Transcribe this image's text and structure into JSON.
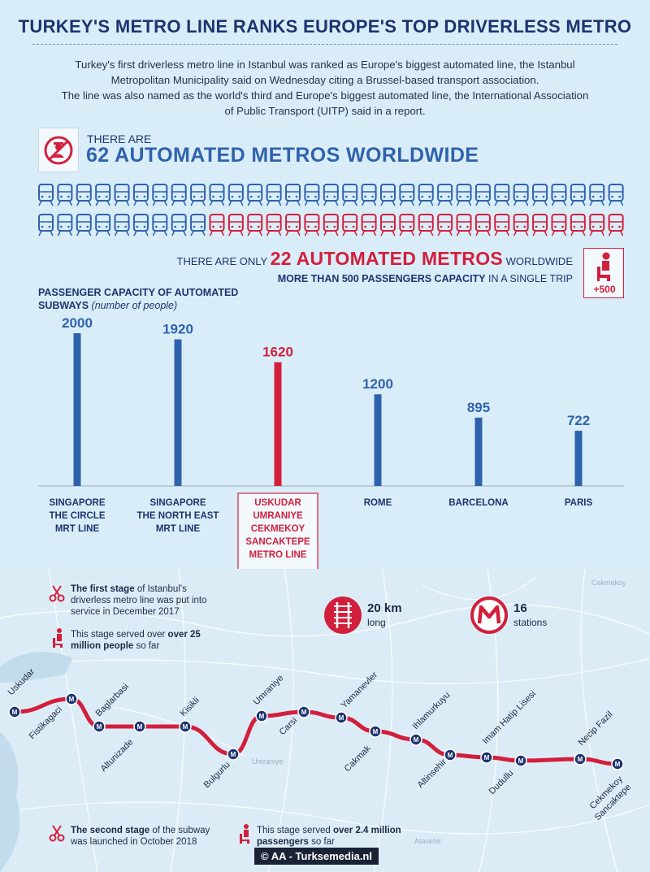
{
  "header": {
    "title": "TURKEY'S METRO LINE RANKS EUROPE'S TOP DRIVERLESS METRO",
    "intro": [
      "Turkey's first driverless metro line in Istanbul was ranked as Europe's biggest automated line, the Istanbul",
      "Metropolitan Municipality said on Wednesday citing a Brussel-based transport association.",
      "The line was also named as the world's third and Europe's biggest automated line, the International Association",
      "of Public Transport (UITP) said in a report."
    ]
  },
  "worldwide": {
    "there_are": "THERE ARE",
    "headline": "62 AUTOMATED METROS WORLDWIDE",
    "total_icons": 62,
    "highlighted_icons": 22,
    "only_prefix": "THERE ARE ONLY",
    "only_highlight": "22 AUTOMATED METROS",
    "only_suffix": "WORLDWIDE",
    "capacity_bold": "MORE THAN 500 PASSENGERS CAPACITY",
    "capacity_rest": "IN A SINGLE TRIP",
    "badge": "+500"
  },
  "chart_data": {
    "type": "bar",
    "title": "PASSENGER CAPACITY OF AUTOMATED SUBWAYS",
    "subtitle": "(number of people)",
    "categories": [
      [
        "SINGAPORE",
        "THE CIRCLE",
        "MRT LINE"
      ],
      [
        "SINGAPORE",
        "THE NORTH EAST",
        "MRT LINE"
      ],
      [
        "USKUDAR",
        "UMRANIYE",
        "CEKMEKOY",
        "SANCAKTEPE",
        "METRO LINE"
      ],
      [
        "ROME"
      ],
      [
        "BARCELONA"
      ],
      [
        "PARIS"
      ]
    ],
    "values": [
      2000,
      1920,
      1620,
      1200,
      895,
      722
    ],
    "value_labels": [
      "2000",
      "1920",
      "1620",
      "1200",
      "895",
      "722"
    ],
    "highlight_index": 2,
    "colors": {
      "default": "#2f62ad",
      "highlight": "#d21f3c"
    }
  },
  "map": {
    "stage1_bold": "The first stage",
    "stage1_rest": "of Istanbul's driverless metro line was put into service in December 2017",
    "stage1_served": "This stage served over",
    "stage1_served_bold": "over 25 million people",
    "stage1_served_end": "so far",
    "length_value": "20 km",
    "length_unit": "long",
    "stations_value": "16",
    "stations_unit": "stations",
    "stage2_bold": "The second stage",
    "stage2_rest": "of the subway was launched in October 2018",
    "stage2_served": "This stage served",
    "stage2_served_bold": "over 2.4 million passengers",
    "stage2_served_end": "so far",
    "map_labels": [
      "Cekmekoy",
      "Umraniye",
      "Atasehir"
    ],
    "stations": [
      "Uskudar",
      "Fistikagaci",
      "Baglarbasi",
      "Altunizade",
      "Kisikli",
      "Bulgurlu",
      "Umraniye",
      "Carsi",
      "Yamanevler",
      "Cakmak",
      "Ihlamurkuyu",
      "Altinsehir",
      "Imam Hatip Lisesi",
      "Dudullu",
      "Necip Fazil",
      "Cekmekoy Sancaktepe"
    ]
  },
  "credit": "© AA - Turksemedia.nl",
  "colors": {
    "blue": "#2f62ad",
    "red": "#d21f3c",
    "navy": "#1d3470",
    "bg": "#d9edf8"
  }
}
